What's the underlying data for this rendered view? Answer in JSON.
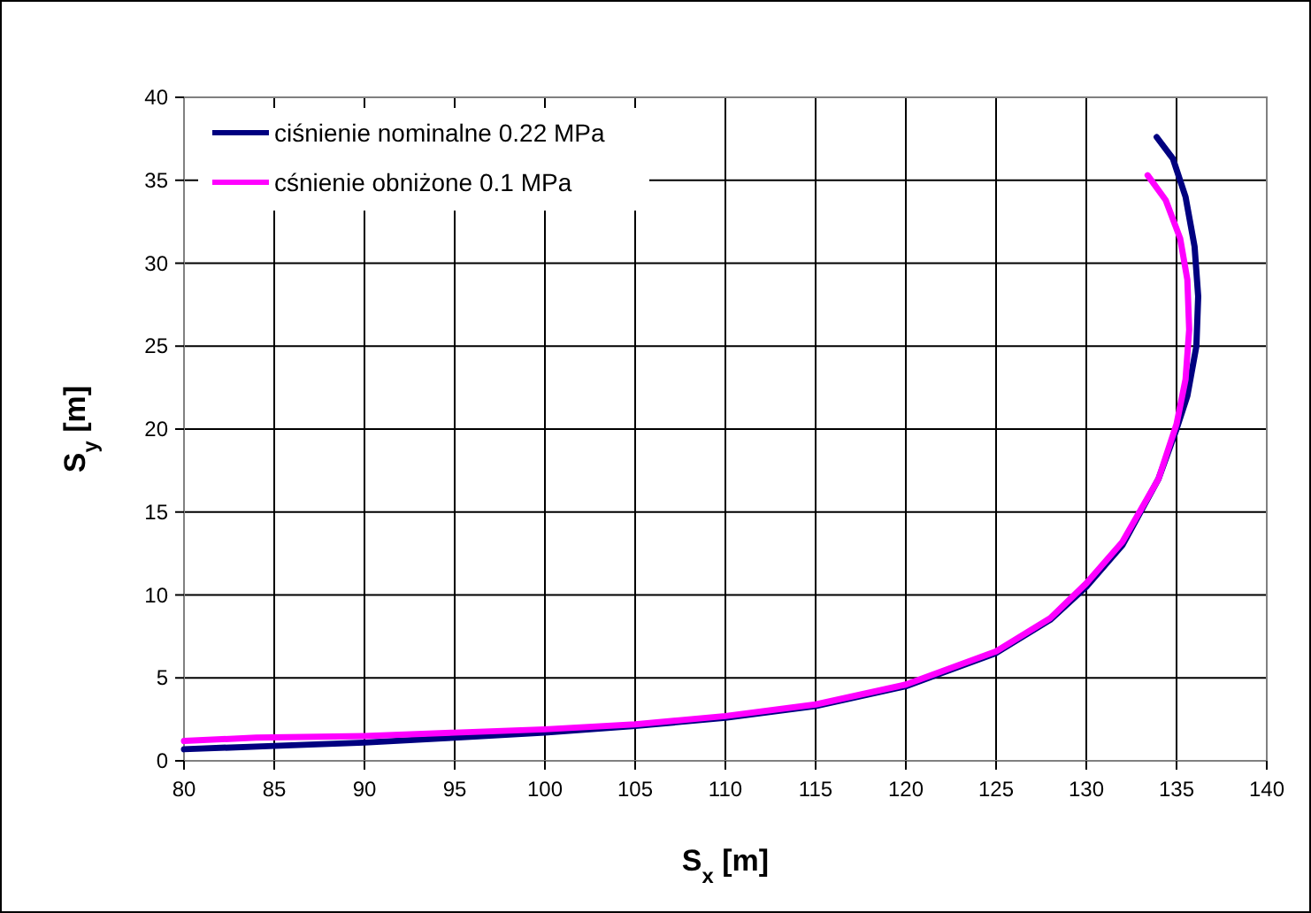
{
  "chart_data": {
    "type": "line",
    "xlabel": "S$_{x}$ [m]",
    "ylabel": "S$_{y}$ [m]",
    "xlim": [
      80,
      140
    ],
    "xticks": [
      80,
      85,
      90,
      95,
      100,
      105,
      110,
      115,
      120,
      125,
      130,
      135,
      140
    ],
    "ylim": [
      0,
      40
    ],
    "yticks": [
      0,
      5,
      10,
      15,
      20,
      25,
      30,
      35,
      40
    ],
    "grid": true,
    "legend": "top left",
    "series": [
      {
        "name": "ciśnienie nominalne 0.22 MPa",
        "color": "#000080",
        "x": [
          80,
          85,
          90,
          95,
          100,
          105,
          110,
          115,
          120,
          125,
          128,
          130,
          132,
          134,
          135,
          135.6,
          136.1,
          136.2,
          136,
          135.5,
          134.8,
          133.9
        ],
        "values": [
          0.7,
          0.9,
          1.1,
          1.4,
          1.7,
          2.1,
          2.6,
          3.3,
          4.5,
          6.5,
          8.5,
          10.5,
          13,
          17,
          20,
          22,
          25,
          28,
          31,
          34,
          36.3,
          37.6
        ]
      },
      {
        "name": "cśnienie obniżone 0.1 MPa",
        "color": "#ff00ff",
        "x": [
          80,
          84,
          90,
          95,
          100,
          105,
          110,
          115,
          120,
          125,
          128,
          130,
          132,
          134,
          135,
          135.5,
          135.7,
          135.6,
          135.2,
          134.4,
          133.4
        ],
        "values": [
          1.2,
          1.4,
          1.5,
          1.7,
          1.9,
          2.2,
          2.7,
          3.4,
          4.6,
          6.6,
          8.6,
          10.7,
          13.2,
          17,
          20.3,
          23,
          26,
          29,
          31.5,
          33.8,
          35.3
        ]
      }
    ]
  }
}
